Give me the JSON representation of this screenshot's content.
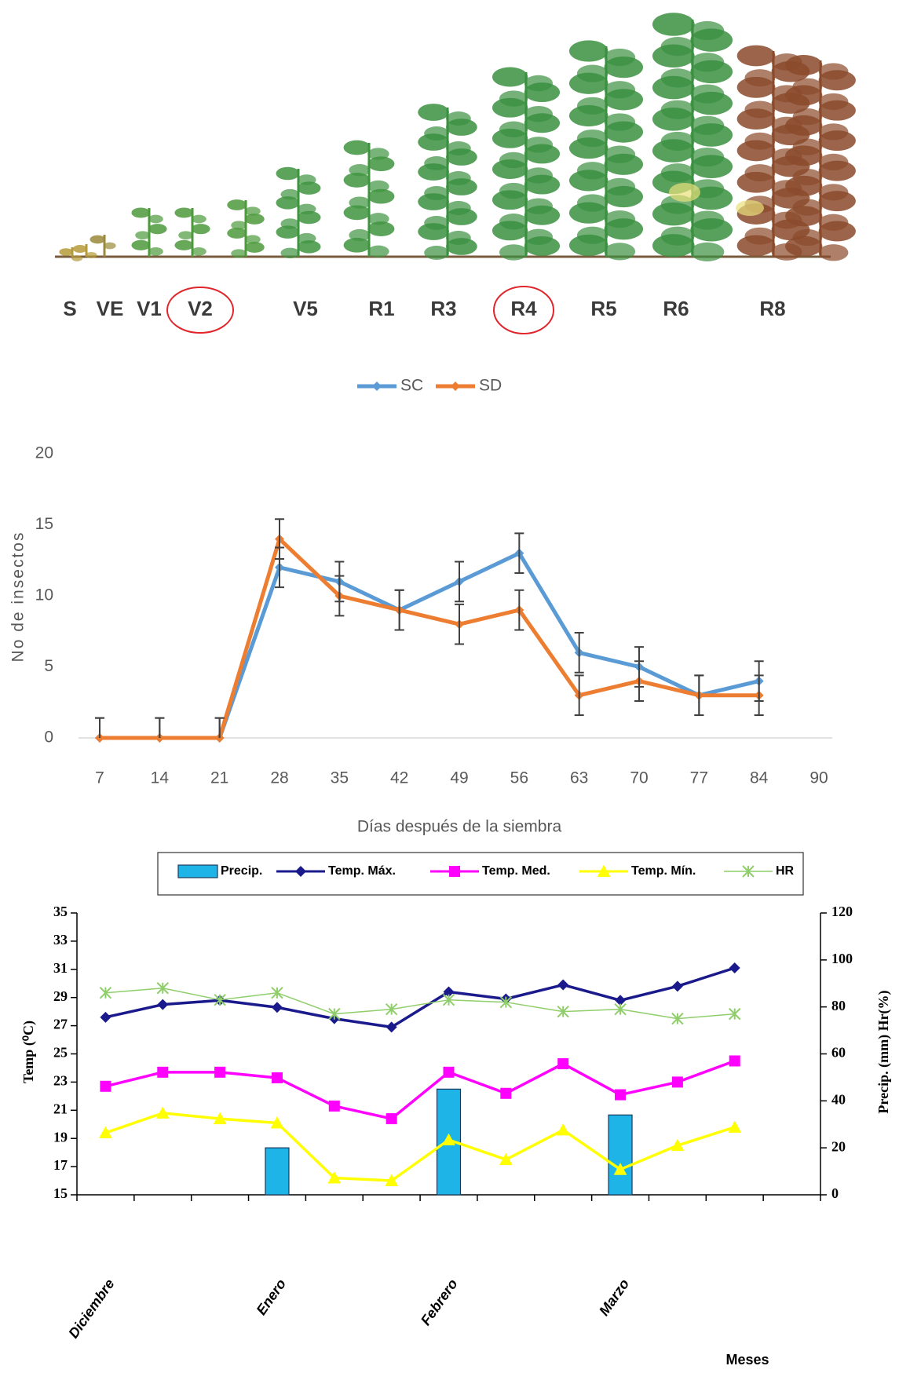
{
  "stages": [
    "S",
    "VE",
    "V1",
    "V2",
    "V5",
    "R1",
    "R3",
    "R4",
    "R5",
    "R6",
    "R8"
  ],
  "chart_data": [
    {
      "type": "line",
      "legend": "top",
      "x_label": "Días después de la siembra",
      "y_label": "No de insectos",
      "categories": [
        "7",
        "14",
        "21",
        "28",
        "35",
        "42",
        "49",
        "56",
        "63",
        "70",
        "77",
        "84",
        "90"
      ],
      "ylim": [
        0,
        20
      ],
      "yticks": [
        0,
        5,
        10,
        15,
        20
      ],
      "series": [
        {
          "name": "SC",
          "color": "#5b9bd5",
          "values": [
            0,
            0,
            0,
            12,
            11,
            9,
            11,
            13,
            6,
            5,
            3,
            4,
            null
          ],
          "errors": [
            1.4,
            1.4,
            1.4,
            1.4,
            1.4,
            1.4,
            1.4,
            1.4,
            1.4,
            1.4,
            1.4,
            1.4,
            null
          ]
        },
        {
          "name": "SD",
          "color": "#ed7d31",
          "values": [
            0,
            0,
            0,
            14,
            10,
            9,
            8,
            9,
            3,
            4,
            3,
            3,
            null
          ],
          "errors": [
            1.4,
            1.4,
            1.4,
            1.4,
            1.4,
            1.4,
            1.4,
            1.4,
            1.4,
            1.4,
            1.4,
            1.4,
            null
          ]
        }
      ]
    },
    {
      "type": "combo",
      "legend": "top",
      "x_label": "Meses",
      "y_label": "Temp (⁰C)",
      "y2_label": "Precip. (mm) Hr(%)",
      "categories": [
        "Diciembre",
        null,
        null,
        "Enero",
        null,
        null,
        "Febrero",
        null,
        null,
        "Marzo",
        null,
        null
      ],
      "ylim": [
        15,
        35
      ],
      "yticks": [
        15,
        17,
        19,
        21,
        23,
        25,
        27,
        29,
        31,
        33,
        35
      ],
      "y2lim": [
        0,
        120
      ],
      "y2ticks": [
        0,
        20,
        40,
        60,
        80,
        100,
        120
      ],
      "series": [
        {
          "name": "Precip.",
          "type": "bar",
          "axis": "y2",
          "color": "#1fb4e8",
          "values": [
            null,
            null,
            null,
            20,
            null,
            null,
            45,
            null,
            null,
            34,
            null,
            null
          ]
        },
        {
          "name": "Temp. Máx.",
          "type": "line",
          "marker": "diamond",
          "color": "#1a1a8c",
          "values": [
            27.6,
            28.5,
            28.8,
            28.3,
            27.5,
            26.9,
            29.4,
            28.9,
            29.9,
            28.8,
            29.8,
            31.1
          ]
        },
        {
          "name": "Temp. Med.",
          "type": "line",
          "marker": "square",
          "color": "#ff00ff",
          "values": [
            22.7,
            23.7,
            23.7,
            23.3,
            21.3,
            20.4,
            23.7,
            22.2,
            24.3,
            22.1,
            23.0,
            24.5
          ]
        },
        {
          "name": "Temp. Mín.",
          "type": "line",
          "marker": "triangle",
          "color": "#ffff00",
          "values": [
            19.4,
            20.8,
            20.4,
            20.1,
            16.2,
            16.0,
            18.9,
            17.5,
            19.6,
            16.8,
            18.5,
            19.8
          ]
        },
        {
          "name": "HR",
          "type": "line",
          "marker": "star",
          "axis": "y2",
          "color": "#8fce6a",
          "values": [
            86,
            88,
            83,
            86,
            77,
            79,
            83,
            82,
            78,
            79,
            75,
            77
          ]
        }
      ]
    }
  ]
}
